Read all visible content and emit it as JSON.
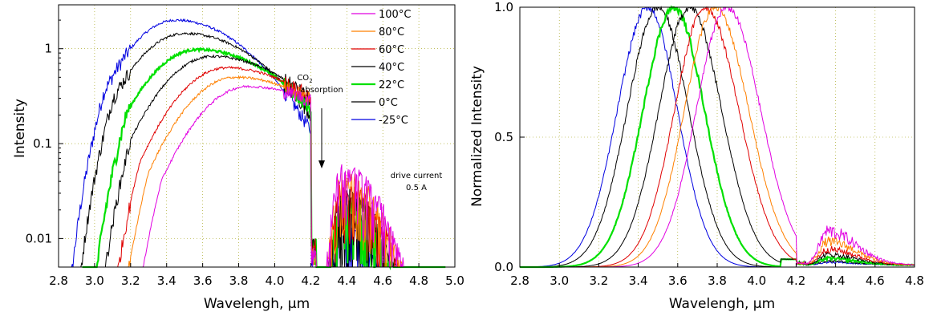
{
  "chart_data": [
    {
      "type": "line",
      "title": "",
      "xlabel": "Wavelengh, μm",
      "ylabel": "Intensity",
      "yscale": "log",
      "xlim": [
        2.8,
        5.0
      ],
      "ylim": [
        0.005,
        2.9
      ],
      "xticks": [
        "2.8",
        "3.0",
        "3.2",
        "3.4",
        "3.6",
        "3.8",
        "4.0",
        "4.2",
        "4.4",
        "4.6",
        "4.8",
        "5.0"
      ],
      "yticks": [
        {
          "value": 0.01,
          "label": "0.01"
        },
        {
          "value": 0.1,
          "label": "0.1"
        },
        {
          "value": 1,
          "label": "1"
        }
      ],
      "grid": true,
      "legend_position": "top-right",
      "annotations": [
        {
          "text_main": "CO",
          "text_sub": "2",
          "line2": "absorption",
          "arrow_from": [
            4.27,
            0.55
          ],
          "arrow_to": [
            4.27,
            0.085
          ]
        },
        {
          "line1": "drive current",
          "line2": "0.5 A"
        }
      ],
      "series": [
        {
          "name": "100°C",
          "color": "#e100e1",
          "peak_x": 3.85,
          "peak_y": 0.4,
          "width_l": 0.4,
          "width_r": 0.75,
          "x_start": 3.12,
          "cut_y": 0.16,
          "after_peak_x": 4.38,
          "after_peak_y": 0.052
        },
        {
          "name": "80°C",
          "color": "#ff8000",
          "peak_x": 3.78,
          "peak_y": 0.5,
          "width_l": 0.4,
          "width_r": 0.72,
          "x_start": 3.05,
          "cut_y": 0.14,
          "after_peak_x": 4.38,
          "after_peak_y": 0.043
        },
        {
          "name": "60°C",
          "color": "#e00000",
          "peak_x": 3.73,
          "peak_y": 0.63,
          "width_l": 0.4,
          "width_r": 0.7,
          "x_start": 3.0,
          "cut_y": 0.12,
          "after_peak_x": 4.38,
          "after_peak_y": 0.035
        },
        {
          "name": "40°C",
          "color": "#000000",
          "peak_x": 3.65,
          "peak_y": 0.83,
          "width_l": 0.4,
          "width_r": 0.68,
          "x_start": 2.95,
          "cut_y": 0.105,
          "after_peak_x": 4.38,
          "after_peak_y": 0.028
        },
        {
          "name": "22°C",
          "color": "#00e000",
          "peak_x": 3.57,
          "peak_y": 0.98,
          "width_l": 0.4,
          "width_r": 0.67,
          "x_start": 2.93,
          "cut_y": 0.09,
          "after_peak_x": 4.38,
          "after_peak_y": 0.022
        },
        {
          "name": "0°C",
          "color": "#000000",
          "peak_x": 3.5,
          "peak_y": 1.45,
          "width_l": 0.4,
          "width_r": 0.63,
          "x_start": 2.85,
          "cut_y": 0.075,
          "after_peak_x": 4.38,
          "after_peak_y": 0.018
        },
        {
          "name": "-25°C",
          "color": "#0000e0",
          "peak_x": 3.45,
          "peak_y": 2.0,
          "width_l": 0.38,
          "width_r": 0.58,
          "x_start": 2.8,
          "cut_y": 0.06,
          "after_peak_x": 4.38,
          "after_peak_y": 0.012
        }
      ]
    },
    {
      "type": "line",
      "title": "",
      "xlabel": "Wavelengh, μm",
      "ylabel": "Normalized Intensity",
      "xlim": [
        2.8,
        4.8
      ],
      "ylim": [
        0.0,
        1.0
      ],
      "xticks": [
        "2.8",
        "3.0",
        "3.2",
        "3.4",
        "3.6",
        "3.8",
        "4.0",
        "4.2",
        "4.4",
        "4.6",
        "4.8"
      ],
      "yticks": [
        {
          "value": 0.0,
          "label": "0.0"
        },
        {
          "value": 0.5,
          "label": "0.5"
        },
        {
          "value": 1.0,
          "label": "1.0"
        }
      ],
      "grid": true,
      "series": [
        {
          "color": "#e100e1",
          "peak_x": 3.85,
          "sigma_l": 0.22,
          "sigma_r": 0.24,
          "after_peak_y": 0.13
        },
        {
          "color": "#ff8000",
          "peak_x": 3.79,
          "sigma_l": 0.22,
          "sigma_r": 0.24,
          "after_peak_y": 0.09
        },
        {
          "color": "#e00000",
          "peak_x": 3.74,
          "sigma_l": 0.22,
          "sigma_r": 0.24,
          "after_peak_y": 0.06
        },
        {
          "color": "#000000",
          "peak_x": 3.66,
          "sigma_l": 0.22,
          "sigma_r": 0.23,
          "after_peak_y": 0.04
        },
        {
          "color": "#00e000",
          "peak_x": 3.58,
          "sigma_l": 0.22,
          "sigma_r": 0.22,
          "after_peak_y": 0.025
        },
        {
          "color": "#000000",
          "peak_x": 3.5,
          "sigma_l": 0.22,
          "sigma_r": 0.22,
          "after_peak_y": 0.015
        },
        {
          "color": "#0000e0",
          "peak_x": 3.45,
          "sigma_l": 0.22,
          "sigma_r": 0.21,
          "after_peak_y": 0.01
        }
      ]
    }
  ]
}
